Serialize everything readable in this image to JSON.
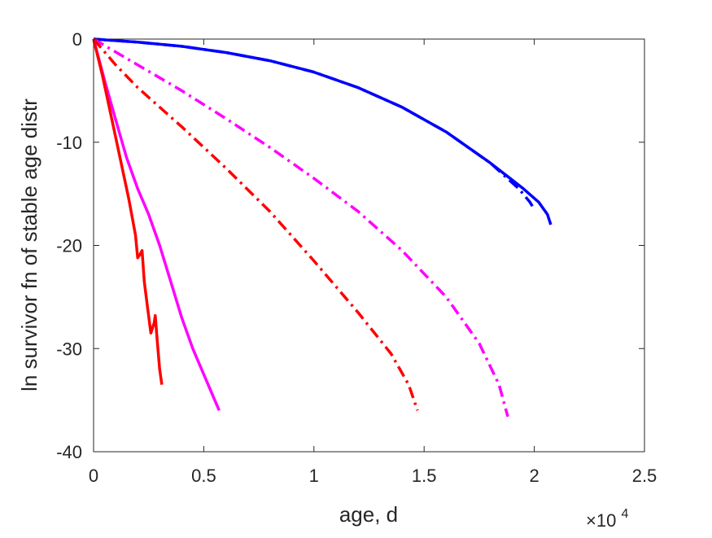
{
  "chart_data": {
    "type": "line",
    "title": "",
    "xlabel": "age, d",
    "ylabel": "ln survivor fn of stable age distr",
    "x_exponent_label": "×10",
    "x_exponent_power": "4",
    "xlim": [
      0,
      25000
    ],
    "ylim": [
      -40,
      0
    ],
    "xticks": [
      0,
      5000,
      10000,
      15000,
      20000,
      25000
    ],
    "xtick_labels": [
      "0",
      "0.5",
      "1",
      "1.5",
      "2",
      "2.5"
    ],
    "yticks": [
      0,
      -10,
      -20,
      -30,
      -40
    ],
    "ytick_labels": [
      "0",
      "-10",
      "-20",
      "-30",
      "-40"
    ],
    "grid": false,
    "legend": "none",
    "series": [
      {
        "color": "#0000ff",
        "style": "solid",
        "points": [
          [
            0,
            0
          ],
          [
            2000,
            -0.3
          ],
          [
            4000,
            -0.7
          ],
          [
            6000,
            -1.3
          ],
          [
            8000,
            -2.1
          ],
          [
            10000,
            -3.2
          ],
          [
            12000,
            -4.7
          ],
          [
            14000,
            -6.6
          ],
          [
            16000,
            -9.0
          ],
          [
            18000,
            -12.0
          ],
          [
            19500,
            -14.5
          ],
          [
            20200,
            -15.8
          ],
          [
            20600,
            -17.0
          ],
          [
            20750,
            -18.0
          ]
        ]
      },
      {
        "color": "#0000ff",
        "style": "dashdot",
        "points": [
          [
            0,
            0
          ],
          [
            2000,
            -0.3
          ],
          [
            4000,
            -0.7
          ],
          [
            6000,
            -1.3
          ],
          [
            8000,
            -2.1
          ],
          [
            10000,
            -3.2
          ],
          [
            12000,
            -4.7
          ],
          [
            14000,
            -6.6
          ],
          [
            16000,
            -9.0
          ],
          [
            18000,
            -12.0
          ],
          [
            19300,
            -14.5
          ],
          [
            19800,
            -15.8
          ],
          [
            20000,
            -16.5
          ]
        ]
      },
      {
        "color": "#ff00ff",
        "style": "dashdot",
        "points": [
          [
            0,
            0
          ],
          [
            2000,
            -2.5
          ],
          [
            4000,
            -5.0
          ],
          [
            6000,
            -7.7
          ],
          [
            8000,
            -10.5
          ],
          [
            10000,
            -13.5
          ],
          [
            12000,
            -16.7
          ],
          [
            14000,
            -20.5
          ],
          [
            16000,
            -25.0
          ],
          [
            17500,
            -29.5
          ],
          [
            18400,
            -33.5
          ],
          [
            18800,
            -36.6
          ]
        ]
      },
      {
        "color": "#ff0000",
        "style": "dashdot",
        "points": [
          [
            0,
            0
          ],
          [
            1000,
            -2.5
          ],
          [
            2000,
            -4.7
          ],
          [
            4000,
            -8.5
          ],
          [
            6000,
            -12.5
          ],
          [
            8000,
            -16.7
          ],
          [
            10000,
            -21.5
          ],
          [
            12000,
            -26.5
          ],
          [
            13500,
            -30.5
          ],
          [
            14300,
            -33.5
          ],
          [
            14700,
            -36.0
          ]
        ]
      },
      {
        "color": "#ff00ff",
        "style": "solid",
        "points": [
          [
            0,
            0
          ],
          [
            500,
            -4.0
          ],
          [
            1000,
            -7.8
          ],
          [
            1500,
            -11.5
          ],
          [
            2000,
            -14.5
          ],
          [
            2500,
            -17.0
          ],
          [
            3000,
            -20.0
          ],
          [
            3500,
            -23.5
          ],
          [
            4000,
            -27.0
          ],
          [
            4500,
            -30.0
          ],
          [
            5000,
            -32.5
          ],
          [
            5500,
            -35.0
          ],
          [
            5700,
            -36.0
          ]
        ]
      },
      {
        "color": "#ff0000",
        "style": "solid",
        "points": [
          [
            0,
            0
          ],
          [
            400,
            -3.5
          ],
          [
            800,
            -7.5
          ],
          [
            1200,
            -11.5
          ],
          [
            1600,
            -15.5
          ],
          [
            1900,
            -19.0
          ],
          [
            2000,
            -21.2
          ],
          [
            2100,
            -20.9
          ],
          [
            2200,
            -20.5
          ],
          [
            2300,
            -23.5
          ],
          [
            2450,
            -26.0
          ],
          [
            2600,
            -28.5
          ],
          [
            2750,
            -27.5
          ],
          [
            2800,
            -26.8
          ],
          [
            2900,
            -29.5
          ],
          [
            3000,
            -32.0
          ],
          [
            3100,
            -33.5
          ]
        ]
      }
    ]
  }
}
